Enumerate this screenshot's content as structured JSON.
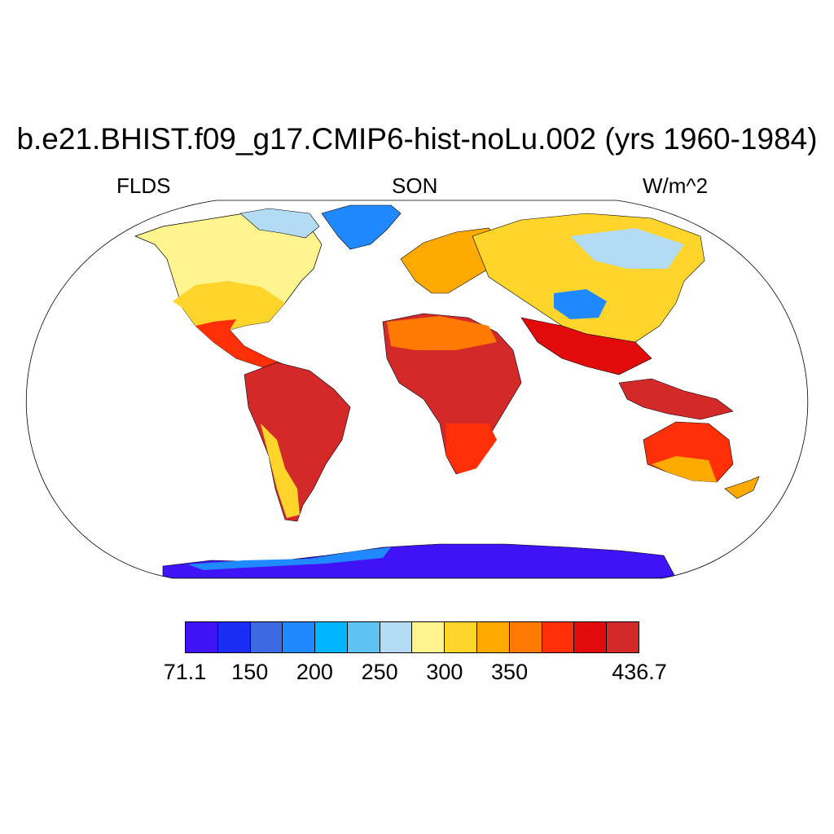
{
  "title": "b.e21.BHIST.f09_g17.CMIP6-hist-noLu.002 (yrs 1960-1984)",
  "variable": "FLDS",
  "season": "SON",
  "units": "W/m^2",
  "colorbar": {
    "colors": [
      "#3f13f5",
      "#1a2ef3",
      "#3c6ae0",
      "#2089ff",
      "#00b7ff",
      "#5ec3f0",
      "#b3dcf4",
      "#fff48e",
      "#ffd52b",
      "#ffaa00",
      "#ff7a00",
      "#ff2f08",
      "#e20b0b",
      "#d42929"
    ],
    "labels": [
      {
        "text": "71.1",
        "boundary": 0
      },
      {
        "text": "150",
        "boundary": 2
      },
      {
        "text": "200",
        "boundary": 4
      },
      {
        "text": "250",
        "boundary": 6
      },
      {
        "text": "300",
        "boundary": 8
      },
      {
        "text": "350",
        "boundary": 10
      },
      {
        "text": "436.7",
        "boundary": 14
      }
    ]
  }
}
